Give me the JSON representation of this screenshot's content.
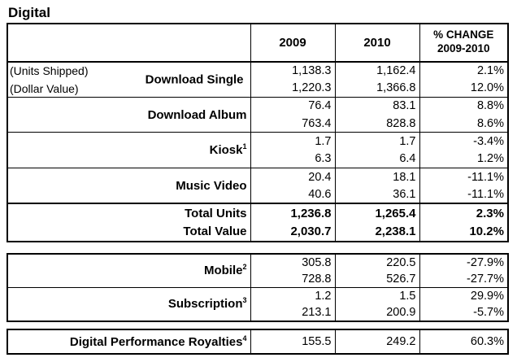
{
  "title": "Digital",
  "header": {
    "col1": "2009",
    "col2": "2010",
    "col3_line1": "% CHANGE",
    "col3_line2": "2009-2010"
  },
  "notes": {
    "units": "(Units Shipped)",
    "value": "(Dollar Value)"
  },
  "download_single": {
    "label": "Download Single",
    "units": [
      "1,138.3",
      "1,162.4",
      "2.1%"
    ],
    "value": [
      "1,220.3",
      "1,366.8",
      "12.0%"
    ]
  },
  "download_album": {
    "label": "Download Album",
    "units": [
      "76.4",
      "83.1",
      "8.8%"
    ],
    "value": [
      "763.4",
      "828.8",
      "8.6%"
    ]
  },
  "kiosk": {
    "label": "Kiosk",
    "sup": "1",
    "units": [
      "1.7",
      "1.7",
      "-3.4%"
    ],
    "value": [
      "6.3",
      "6.4",
      "1.2%"
    ]
  },
  "music_video": {
    "label": "Music Video",
    "units": [
      "20.4",
      "18.1",
      "-11.1%"
    ],
    "value": [
      "40.6",
      "36.1",
      "-11.1%"
    ]
  },
  "total_units": {
    "label": "Total Units",
    "vals": [
      "1,236.8",
      "1,265.4",
      "2.3%"
    ]
  },
  "total_value": {
    "label": "Total Value",
    "vals": [
      "2,030.7",
      "2,238.1",
      "10.2%"
    ]
  },
  "mobile": {
    "label": "Mobile",
    "sup": "2",
    "units": [
      "305.8",
      "220.5",
      "-27.9%"
    ],
    "value": [
      "728.8",
      "526.7",
      "-27.7%"
    ]
  },
  "subscription": {
    "label": "Subscription",
    "sup": "3",
    "units": [
      "1.2",
      "1.5",
      "29.9%"
    ],
    "value": [
      "213.1",
      "200.9",
      "-5.7%"
    ]
  },
  "royalties": {
    "label": "Digital Performance Royalties",
    "sup": "4",
    "vals": [
      "155.5",
      "249.2",
      "60.3%"
    ]
  }
}
